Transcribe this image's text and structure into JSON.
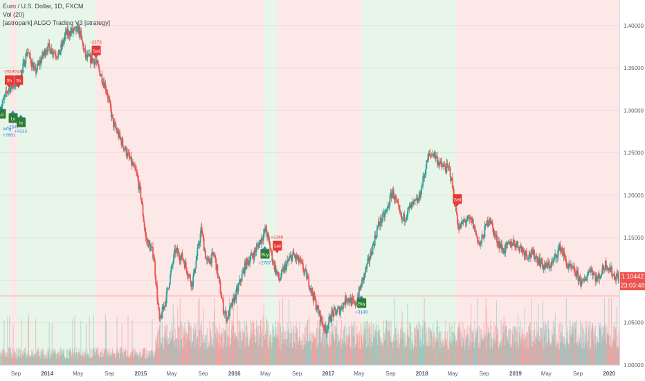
{
  "legend": {
    "line1": "Euro / U.S. Dollar, 1D, FXCM",
    "line2": "Vol (20)",
    "line3": "[astropark] ALGO Trading V3 [strategy]"
  },
  "colors": {
    "bull": "#26a69a",
    "bear": "#ef5350",
    "zone_green": "#e8f5e9",
    "zone_red": "#fde8e8",
    "axis_text": "#555a66",
    "long_tag": "#2e7d32",
    "short_tag": "#e53935",
    "last_price_bg": "#ef5350"
  },
  "price_badge": {
    "last_price": "1.10442",
    "countdown": "23:03:48"
  },
  "chart_data": {
    "type": "line",
    "symbol": "EURUSD",
    "interval": "1D",
    "x_range": [
      "2013-07-01",
      "2020-02-10"
    ],
    "ylim": [
      1.0,
      1.43
    ],
    "y_ticks": [
      1.0,
      1.05,
      1.1,
      1.15,
      1.2,
      1.25,
      1.3,
      1.35,
      1.4
    ],
    "y_tick_labels": [
      "1.00000",
      "1.05000",
      "1.10000",
      "1.15000",
      "1.20000",
      "1.25000",
      "1.30000",
      "1.35000",
      "1.40000"
    ],
    "x_ticks": [
      {
        "date": "2013-09-01",
        "label": "Sep"
      },
      {
        "date": "2014-01-01",
        "label": "2014"
      },
      {
        "date": "2014-05-01",
        "label": "May"
      },
      {
        "date": "2014-09-01",
        "label": "Sep"
      },
      {
        "date": "2015-01-01",
        "label": "2015"
      },
      {
        "date": "2015-05-01",
        "label": "May"
      },
      {
        "date": "2015-09-01",
        "label": "Sep"
      },
      {
        "date": "2016-01-01",
        "label": "2016"
      },
      {
        "date": "2016-05-01",
        "label": "May"
      },
      {
        "date": "2016-09-01",
        "label": "Sep"
      },
      {
        "date": "2017-01-01",
        "label": "2017"
      },
      {
        "date": "2017-05-01",
        "label": "May"
      },
      {
        "date": "2017-09-01",
        "label": "Sep"
      },
      {
        "date": "2018-01-01",
        "label": "2018"
      },
      {
        "date": "2018-05-01",
        "label": "May"
      },
      {
        "date": "2018-09-01",
        "label": "Sep"
      },
      {
        "date": "2019-01-01",
        "label": "2019"
      },
      {
        "date": "2019-05-01",
        "label": "May"
      },
      {
        "date": "2019-09-01",
        "label": "Sep"
      },
      {
        "date": "2020-01-01",
        "label": "2020"
      }
    ],
    "price_path": [
      [
        "2013-07-01",
        1.3
      ],
      [
        "2013-08-01",
        1.325
      ],
      [
        "2013-09-15",
        1.335
      ],
      [
        "2013-10-15",
        1.37
      ],
      [
        "2013-11-15",
        1.345
      ],
      [
        "2014-01-01",
        1.375
      ],
      [
        "2014-02-15",
        1.365
      ],
      [
        "2014-03-15",
        1.39
      ],
      [
        "2014-05-05",
        1.395
      ],
      [
        "2014-06-01",
        1.362
      ],
      [
        "2014-07-01",
        1.36
      ],
      [
        "2014-07-15",
        1.353
      ],
      [
        "2014-08-20",
        1.325
      ],
      [
        "2014-09-15",
        1.285
      ],
      [
        "2014-10-15",
        1.265
      ],
      [
        "2014-11-15",
        1.245
      ],
      [
        "2014-12-15",
        1.225
      ],
      [
        "2015-01-01",
        1.2
      ],
      [
        "2015-01-20",
        1.15
      ],
      [
        "2015-02-20",
        1.13
      ],
      [
        "2015-03-15",
        1.05
      ],
      [
        "2015-04-10",
        1.08
      ],
      [
        "2015-05-15",
        1.135
      ],
      [
        "2015-06-15",
        1.125
      ],
      [
        "2015-07-20",
        1.095
      ],
      [
        "2015-08-25",
        1.16
      ],
      [
        "2015-09-15",
        1.12
      ],
      [
        "2015-10-15",
        1.13
      ],
      [
        "2015-11-20",
        1.065
      ],
      [
        "2015-12-03",
        1.055
      ],
      [
        "2016-01-15",
        1.09
      ],
      [
        "2016-02-15",
        1.12
      ],
      [
        "2016-03-15",
        1.13
      ],
      [
        "2016-05-03",
        1.16
      ],
      [
        "2016-06-01",
        1.12
      ],
      [
        "2016-06-24",
        1.1
      ],
      [
        "2016-07-15",
        1.115
      ],
      [
        "2016-08-15",
        1.13
      ],
      [
        "2016-09-15",
        1.12
      ],
      [
        "2016-10-15",
        1.1
      ],
      [
        "2016-11-15",
        1.07
      ],
      [
        "2016-12-20",
        1.04
      ],
      [
        "2017-01-15",
        1.06
      ],
      [
        "2017-02-15",
        1.065
      ],
      [
        "2017-03-15",
        1.08
      ],
      [
        "2017-04-15",
        1.07
      ],
      [
        "2017-05-10",
        1.095
      ],
      [
        "2017-06-15",
        1.13
      ],
      [
        "2017-07-15",
        1.165
      ],
      [
        "2017-08-15",
        1.18
      ],
      [
        "2017-09-08",
        1.205
      ],
      [
        "2017-10-15",
        1.17
      ],
      [
        "2017-11-15",
        1.185
      ],
      [
        "2017-12-20",
        1.195
      ],
      [
        "2018-01-25",
        1.245
      ],
      [
        "2018-02-15",
        1.25
      ],
      [
        "2018-03-15",
        1.235
      ],
      [
        "2018-04-20",
        1.23
      ],
      [
        "2018-05-25",
        1.16
      ],
      [
        "2018-06-15",
        1.17
      ],
      [
        "2018-07-15",
        1.17
      ],
      [
        "2018-08-15",
        1.14
      ],
      [
        "2018-09-20",
        1.175
      ],
      [
        "2018-10-15",
        1.15
      ],
      [
        "2018-11-15",
        1.135
      ],
      [
        "2018-12-20",
        1.145
      ],
      [
        "2019-01-15",
        1.14
      ],
      [
        "2019-02-15",
        1.13
      ],
      [
        "2019-03-15",
        1.13
      ],
      [
        "2019-04-25",
        1.115
      ],
      [
        "2019-05-25",
        1.12
      ],
      [
        "2019-06-25",
        1.14
      ],
      [
        "2019-07-25",
        1.115
      ],
      [
        "2019-08-20",
        1.11
      ],
      [
        "2019-09-20",
        1.095
      ],
      [
        "2019-10-20",
        1.115
      ],
      [
        "2019-11-15",
        1.1
      ],
      [
        "2019-12-20",
        1.12
      ],
      [
        "2020-01-20",
        1.105
      ],
      [
        "2020-02-10",
        1.104
      ]
    ],
    "zones": [
      {
        "start": "2013-07-01",
        "end": "2013-08-10",
        "type": "green"
      },
      {
        "start": "2013-08-10",
        "end": "2013-09-05",
        "type": "red"
      },
      {
        "start": "2013-09-05",
        "end": "2014-07-08",
        "type": "green"
      },
      {
        "start": "2014-07-08",
        "end": "2016-04-25",
        "type": "red"
      },
      {
        "start": "2016-04-25",
        "end": "2016-06-15",
        "type": "green"
      },
      {
        "start": "2016-06-15",
        "end": "2017-05-10",
        "type": "red"
      },
      {
        "start": "2017-05-10",
        "end": "2018-05-15",
        "type": "green"
      },
      {
        "start": "2018-05-15",
        "end": "2020-02-10",
        "type": "red"
      }
    ],
    "trade_tags": [
      {
        "date": "2013-07-05",
        "price": 1.305,
        "type": "long",
        "label": "Lo",
        "value": ""
      },
      {
        "date": "2013-08-05",
        "price": 1.325,
        "type": "short",
        "label": "Sh",
        "value": "-2617"
      },
      {
        "date": "2013-08-20",
        "price": 1.3,
        "type": "long",
        "label": "Lo",
        "value": "+2547"
      },
      {
        "date": "2013-09-10",
        "price": 1.325,
        "type": "short",
        "label": "Sh",
        "value": "+2493"
      },
      {
        "date": "2013-09-20",
        "price": 1.295,
        "type": "long",
        "label": "lo",
        "value": "+4313"
      },
      {
        "date": "2014-07-10",
        "price": 1.36,
        "type": "short",
        "label": "Sell",
        "value": "-3376"
      },
      {
        "date": "2016-04-28",
        "price": 1.14,
        "type": "long",
        "label": "Buy",
        "value": "+2787"
      },
      {
        "date": "2016-06-15",
        "price": 1.13,
        "type": "short",
        "label": "Sell",
        "value": "+3165"
      },
      {
        "date": "2017-05-10",
        "price": 1.082,
        "type": "long",
        "label": "Buy",
        "value": "+3149"
      },
      {
        "date": "2018-05-18",
        "price": 1.185,
        "type": "short",
        "label": "Sell",
        "value": ""
      }
    ],
    "left_notes": [
      "long",
      "+2681"
    ],
    "volume_ylim": [
      0,
      100
    ]
  }
}
